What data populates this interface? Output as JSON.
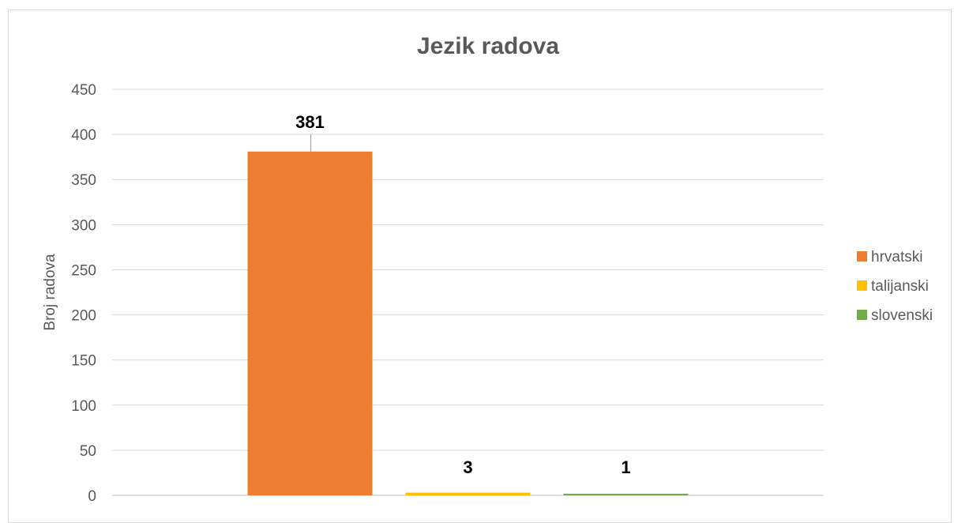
{
  "chart_data": {
    "type": "bar",
    "title": "Jezik radova",
    "xlabel": "",
    "ylabel": "Broj radova",
    "categories": [
      ""
    ],
    "series": [
      {
        "name": "hrvatski",
        "values": [
          381
        ],
        "color": "#ED7D31"
      },
      {
        "name": "talijanski",
        "values": [
          3
        ],
        "color": "#FFC000"
      },
      {
        "name": "slovenski",
        "values": [
          1
        ],
        "color": "#70AD47"
      }
    ],
    "ylim": [
      0,
      450
    ],
    "yticks": [
      0,
      50,
      100,
      150,
      200,
      250,
      300,
      350,
      400,
      450
    ],
    "grid": true,
    "legend": "right",
    "data_labels": true
  }
}
